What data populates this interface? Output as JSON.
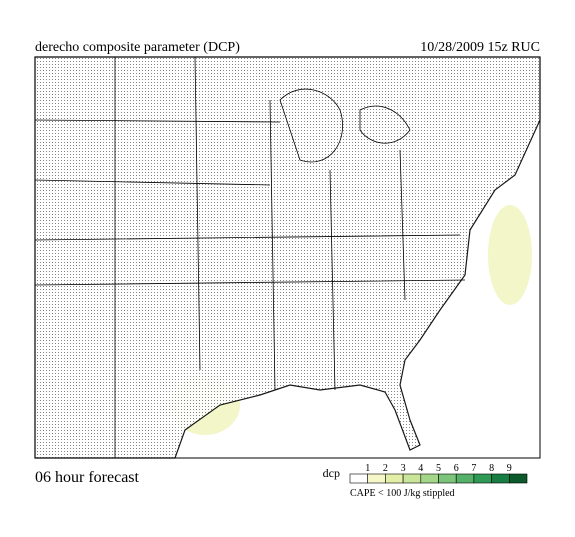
{
  "header": {
    "title": "derecho composite parameter (DCP)",
    "valid": "10/28/2009  15z  RUC"
  },
  "footer": {
    "forecast": "06 hour forecast"
  },
  "legend": {
    "label": "dcp",
    "ticks": [
      "1",
      "2",
      "3",
      "4",
      "5",
      "6",
      "7",
      "8",
      "9"
    ],
    "colors": [
      "#ffffff",
      "#f5f7c8",
      "#e3efa6",
      "#c9e59a",
      "#a4d68a",
      "#7cc47a",
      "#55b068",
      "#2f9a55",
      "#177d42",
      "#0a5a2c"
    ],
    "note": "CAPE < 100 J/kg stippled"
  }
}
